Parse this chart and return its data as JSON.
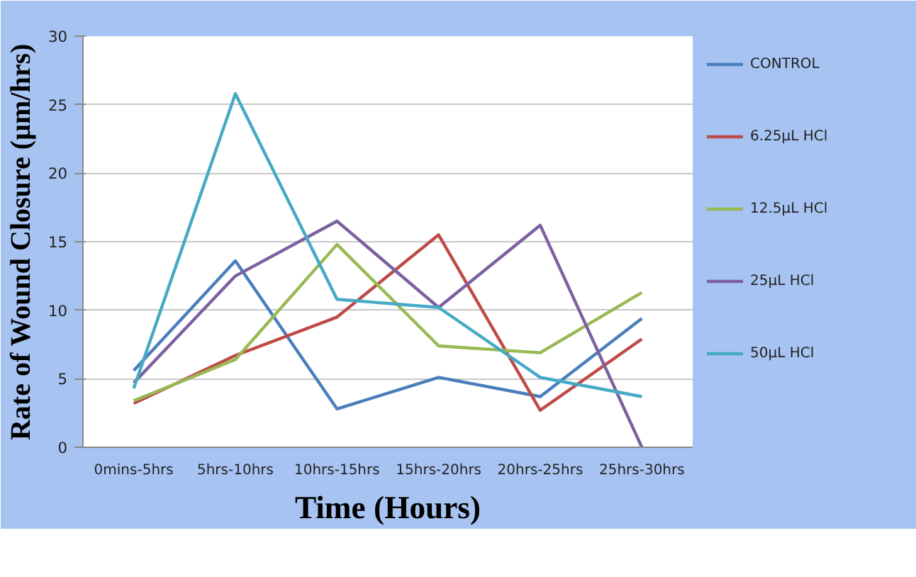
{
  "chart_data": {
    "type": "line",
    "xlabel": "Time (Hours)",
    "ylabel": "Rate of Wound Closure (µm/hrs)",
    "categories": [
      "0mins-5hrs",
      "5hrs-10hrs",
      "10hrs-15hrs",
      "15hrs-20hrs",
      "20hrs-25hrs",
      "25hrs-30hrs"
    ],
    "series": [
      {
        "name": "CONTROL",
        "color": "#4a7ebb",
        "values": [
          5.6,
          13.6,
          2.8,
          5.1,
          3.7,
          9.4
        ]
      },
      {
        "name": "6.25µL HCl",
        "color": "#be4b48",
        "values": [
          3.2,
          6.7,
          9.5,
          15.5,
          2.7,
          7.9
        ]
      },
      {
        "name": "12.5µL HCl",
        "color": "#98b954",
        "values": [
          3.4,
          6.4,
          14.8,
          7.4,
          6.9,
          11.3
        ]
      },
      {
        "name": "25µL HCl",
        "color": "#7d60a0",
        "values": [
          4.7,
          12.5,
          16.5,
          10.2,
          16.2,
          0
        ]
      },
      {
        "name": "50µL HCl",
        "color": "#46aac5",
        "values": [
          4.3,
          25.8,
          10.8,
          10.2,
          5.1,
          3.7
        ]
      }
    ],
    "ylim": [
      0,
      30
    ],
    "yticks": [
      0,
      5,
      10,
      15,
      20,
      25,
      30
    ],
    "grid": "y",
    "legend": "right"
  }
}
